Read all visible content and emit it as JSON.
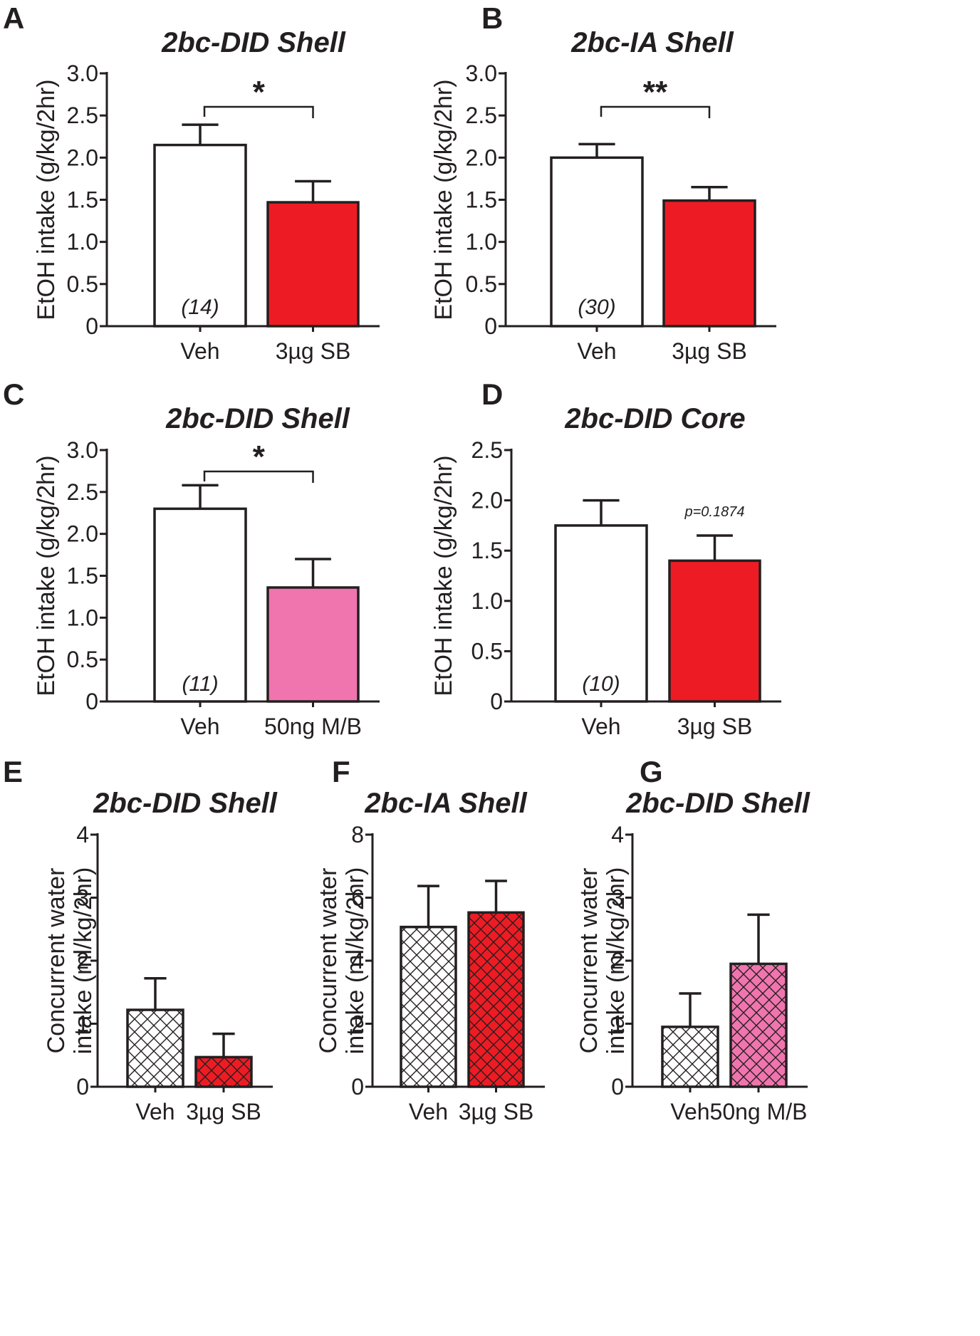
{
  "colors": {
    "red": "#ed1c24",
    "pink": "#f075ae",
    "white": "#ffffff",
    "ink": "#231f20"
  },
  "chart_data": [
    {
      "panel": "A",
      "type": "bar",
      "title": "2bc-DID Shell",
      "ylabel": "EtOH intake (g/kg/2hr)",
      "xlabel": "",
      "ylim": [
        0,
        3.0
      ],
      "yticks": [
        "0",
        "0.5",
        "1.0",
        "1.5",
        "2.0",
        "2.5",
        "3.0"
      ],
      "categories": [
        "Veh",
        "3µg SB"
      ],
      "values": [
        2.15,
        1.47
      ],
      "errors": [
        0.24,
        0.25
      ],
      "fills": [
        "white",
        "red"
      ],
      "hatched": [
        false,
        false
      ],
      "n_label": "(14)",
      "significance": "*",
      "p_label": ""
    },
    {
      "panel": "B",
      "type": "bar",
      "title": "2bc-IA Shell",
      "ylabel": "EtOH intake (g/kg/2hr)",
      "xlabel": "",
      "ylim": [
        0,
        3.0
      ],
      "yticks": [
        "0",
        "0.5",
        "1.0",
        "1.5",
        "2.0",
        "2.5",
        "3.0"
      ],
      "categories": [
        "Veh",
        "3µg SB"
      ],
      "values": [
        2.0,
        1.49
      ],
      "errors": [
        0.16,
        0.16
      ],
      "fills": [
        "white",
        "red"
      ],
      "hatched": [
        false,
        false
      ],
      "n_label": "(30)",
      "significance": "**",
      "p_label": ""
    },
    {
      "panel": "C",
      "type": "bar",
      "title": "2bc-DID Shell",
      "ylabel": "EtOH intake (g/kg/2hr)",
      "xlabel": "",
      "ylim": [
        0,
        3.0
      ],
      "yticks": [
        "0",
        "0.5",
        "1.0",
        "1.5",
        "2.0",
        "2.5",
        "3.0"
      ],
      "categories": [
        "Veh",
        "50ng M/B"
      ],
      "values": [
        2.3,
        1.36
      ],
      "errors": [
        0.28,
        0.34
      ],
      "fills": [
        "white",
        "pink"
      ],
      "hatched": [
        false,
        false
      ],
      "n_label": "(11)",
      "significance": "*",
      "p_label": ""
    },
    {
      "panel": "D",
      "type": "bar",
      "title": "2bc-DID Core",
      "ylabel": "EtOH intake (g/kg/2hr)",
      "xlabel": "",
      "ylim": [
        0,
        2.5
      ],
      "yticks": [
        "0",
        "0.5",
        "1.0",
        "1.5",
        "2.0",
        "2.5"
      ],
      "categories": [
        "Veh",
        "3µg SB"
      ],
      "values": [
        1.75,
        1.4
      ],
      "errors": [
        0.25,
        0.25
      ],
      "fills": [
        "white",
        "red"
      ],
      "hatched": [
        false,
        false
      ],
      "n_label": "(10)",
      "significance": "",
      "p_label": "p=0.1874"
    },
    {
      "panel": "E",
      "type": "bar",
      "title": "2bc-DID Shell",
      "ylabel": "Concurrent water intake (ml/kg/2hr)",
      "xlabel": "",
      "ylim": [
        0,
        4
      ],
      "yticks": [
        "0",
        "1",
        "2",
        "3",
        "4"
      ],
      "categories": [
        "Veh",
        "3µg SB"
      ],
      "values": [
        1.22,
        0.47
      ],
      "errors": [
        0.5,
        0.37
      ],
      "fills": [
        "white",
        "red"
      ],
      "hatched": [
        true,
        true
      ],
      "n_label": "",
      "significance": "",
      "p_label": ""
    },
    {
      "panel": "F",
      "type": "bar",
      "title": "2bc-IA Shell",
      "ylabel": "Concurrent water intake (ml/kg/2hr)",
      "xlabel": "",
      "ylim": [
        0,
        8
      ],
      "yticks": [
        "0",
        "2",
        "4",
        "6",
        "8"
      ],
      "categories": [
        "Veh",
        "3µg SB"
      ],
      "values": [
        5.07,
        5.53
      ],
      "errors": [
        1.3,
        1.0
      ],
      "fills": [
        "white",
        "red"
      ],
      "hatched": [
        true,
        true
      ],
      "n_label": "",
      "significance": "",
      "p_label": ""
    },
    {
      "panel": "G",
      "type": "bar",
      "title": "2bc-DID Shell",
      "ylabel": "Concurrent water intake (ml/kg/2hr)",
      "xlabel": "",
      "ylim": [
        0,
        4
      ],
      "yticks": [
        "0",
        "1",
        "2",
        "3",
        "4"
      ],
      "categories": [
        "Veh",
        "50ng M/B"
      ],
      "values": [
        0.95,
        1.95
      ],
      "errors": [
        0.53,
        0.78
      ],
      "fills": [
        "white",
        "pink"
      ],
      "hatched": [
        true,
        true
      ],
      "n_label": "",
      "significance": "",
      "p_label": ""
    }
  ]
}
